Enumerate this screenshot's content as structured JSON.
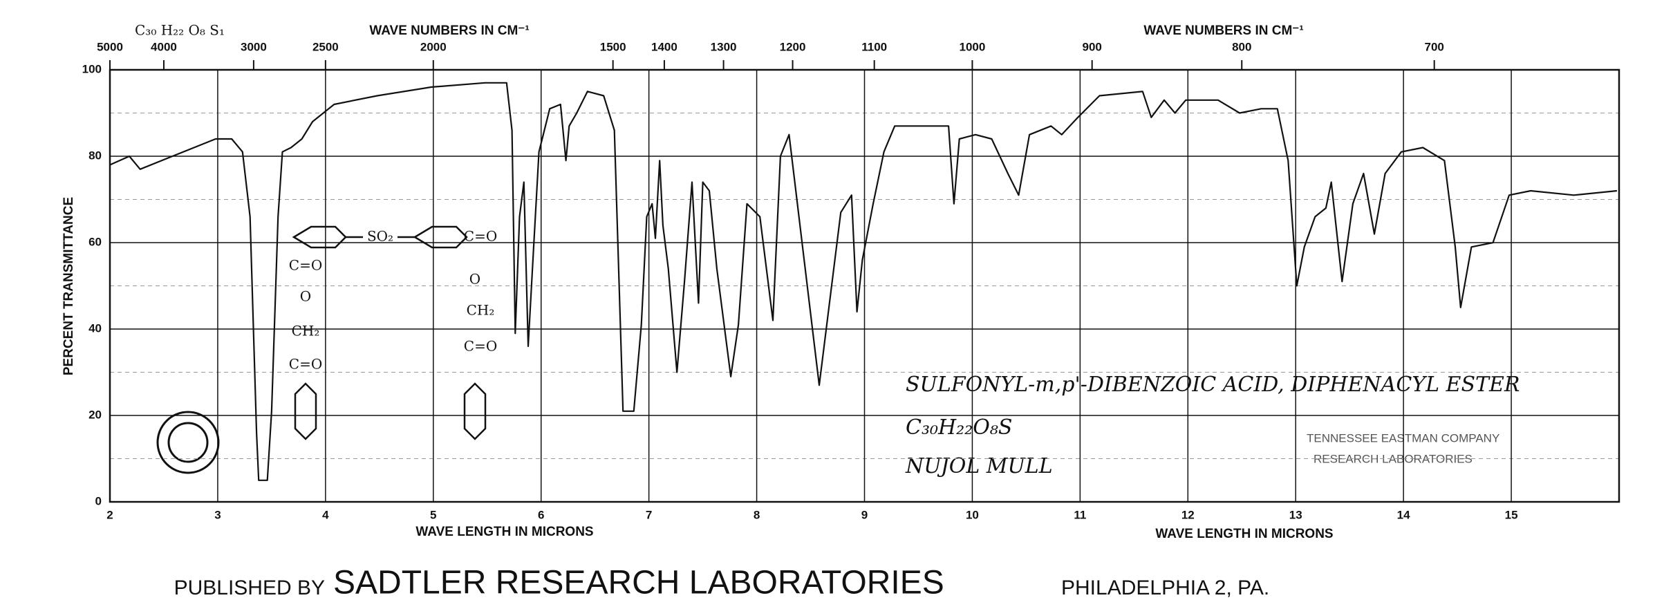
{
  "chart_data": {
    "type": "line",
    "formula_code": "C₃₀ H₂₂ O₈ S₁",
    "x2label": "WAVE NUMBERS IN CM⁻¹",
    "xlabel": "WAVE LENGTH IN MICRONS",
    "ylabel": "PERCENT TRANSMITTANCE",
    "x": [
      2.0,
      2.18,
      2.28,
      2.58,
      2.98,
      3.13,
      3.23,
      3.3,
      3.36,
      3.38,
      3.46,
      3.5,
      3.56,
      3.6,
      3.68,
      3.78,
      3.88,
      4.08,
      4.48,
      4.98,
      5.48,
      5.68,
      5.73,
      5.76,
      5.8,
      5.84,
      5.88,
      5.92,
      5.98,
      6.08,
      6.18,
      6.23,
      6.26,
      6.33,
      6.43,
      6.58,
      6.68,
      6.76,
      6.86,
      6.93,
      6.98,
      7.03,
      7.06,
      7.1,
      7.13,
      7.18,
      7.26,
      7.33,
      7.4,
      7.46,
      7.5,
      7.56,
      7.63,
      7.76,
      7.83,
      7.91,
      8.03,
      8.15,
      8.22,
      8.3,
      8.58,
      8.78,
      8.88,
      8.93,
      8.98,
      9.08,
      9.18,
      9.28,
      9.58,
      9.78,
      9.83,
      9.88,
      10.03,
      10.18,
      10.33,
      10.43,
      10.53,
      10.73,
      10.83,
      10.98,
      11.18,
      11.58,
      11.66,
      11.78,
      11.88,
      11.98,
      12.28,
      12.48,
      12.68,
      12.83,
      12.93,
      13.01,
      13.08,
      13.18,
      13.28,
      13.33,
      13.43,
      13.53,
      13.63,
      13.73,
      13.83,
      13.98,
      14.18,
      14.38,
      14.48,
      14.53,
      14.63,
      14.83,
      14.98,
      15.18,
      15.58,
      15.98
    ],
    "values": [
      78,
      80,
      77,
      80,
      84,
      84,
      81,
      66,
      16,
      5,
      5,
      21,
      66,
      81,
      82,
      84,
      88,
      92,
      94,
      96,
      97,
      97,
      86,
      39,
      66,
      74,
      36,
      54,
      81,
      91,
      92,
      79,
      87,
      90,
      95,
      94,
      86,
      21,
      21,
      41,
      66,
      69,
      61,
      79,
      64,
      54,
      30,
      51,
      74,
      46,
      74,
      72,
      54,
      29,
      41,
      69,
      66,
      42,
      80,
      85,
      27,
      67,
      71,
      44,
      56,
      69,
      81,
      87,
      87,
      87,
      69,
      84,
      85,
      84,
      76,
      71,
      85,
      87,
      85,
      89,
      94,
      95,
      89,
      93,
      90,
      93,
      93,
      90,
      91,
      91,
      79,
      50,
      59,
      66,
      68,
      74,
      51,
      69,
      76,
      62,
      76,
      81,
      82,
      79,
      59,
      45,
      59,
      60,
      71,
      72,
      71,
      72
    ],
    "color": "#111111",
    "xlim": [
      2,
      16
    ],
    "ylim": [
      0,
      100
    ],
    "xticks": [
      2,
      3,
      4,
      5,
      6,
      7,
      8,
      9,
      10,
      11,
      12,
      13,
      14,
      15
    ],
    "yticks": [
      0,
      20,
      40,
      60,
      80,
      100
    ],
    "x2ticks": [
      5000,
      4000,
      3000,
      2500,
      2000,
      1500,
      1400,
      1300,
      1200,
      1100,
      1000,
      900,
      800,
      700
    ],
    "grid": true,
    "annotations": [
      "SULFONYL-m,p'-DIBENZOIC ACID, DIPHENACYL ESTER",
      "C₃₀H₂₂O₈S",
      "NUJOL MULL"
    ],
    "stamp": [
      "TENNESSEE EASTMAN COMPANY",
      "RESEARCH LABORATORIES"
    ],
    "structure": {
      "bridge": "SO₂",
      "left_chain": [
        "C=O",
        "O",
        "CH₂",
        "C=O"
      ],
      "right_chain": [
        "C=O",
        "O",
        "CH₂",
        "C=O"
      ]
    },
    "footer": [
      "PUBLISHED BY",
      "SADTLER RESEARCH LABORATORIES",
      "PHILADELPHIA 2, PA."
    ]
  }
}
